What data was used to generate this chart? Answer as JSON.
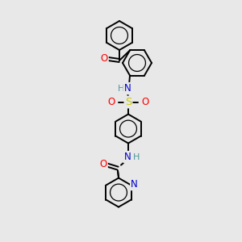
{
  "background_color": "#e8e8e8",
  "bond_color": "#000000",
  "atom_colors": {
    "O": "#ff0000",
    "N": "#0000cc",
    "S": "#cccc00",
    "H": "#4a9999",
    "C": "#000000"
  },
  "figsize": [
    3.0,
    3.0
  ],
  "dpi": 100,
  "lw": 1.4,
  "ring_r": 18
}
